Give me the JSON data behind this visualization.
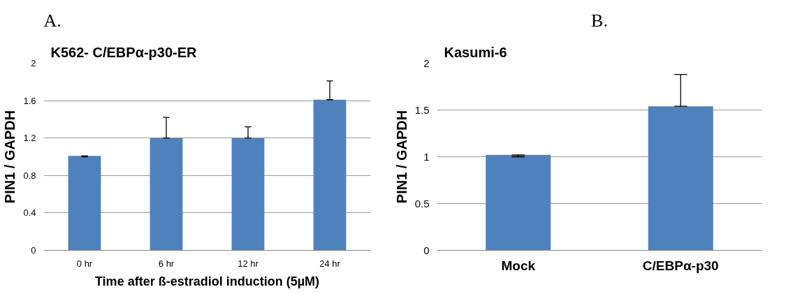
{
  "chart_data": [
    {
      "type": "bar",
      "annotations": [
        "A."
      ],
      "title": "K562- C/EBPα-p30-ER",
      "xlabel": "Time after ß-estradiol induction (5µM)",
      "ylabel": "PIN1 / GAPDH",
      "categories": [
        "0 hr",
        "6 hr",
        "12 hr",
        "24 hr"
      ],
      "values": [
        1.01,
        1.2,
        1.2,
        1.61
      ],
      "errors": [
        [
          1.0,
          1.01
        ],
        [
          1.2,
          1.42
        ],
        [
          1.2,
          1.32
        ],
        [
          1.61,
          1.81
        ]
      ],
      "color": "#4f81bd",
      "ylim": [
        0,
        2
      ],
      "yticks": [
        0,
        0.4,
        0.8,
        1.2,
        1.6,
        2
      ],
      "grid": "y"
    },
    {
      "type": "bar",
      "annotations": [
        "B."
      ],
      "title": "Kasumi-6",
      "ylabel": "PIN1 / GAPDH",
      "categories": [
        "Mock",
        "C/EBPα-p30"
      ],
      "values": [
        1.02,
        1.54
      ],
      "errors": [
        [
          1.0,
          1.02
        ],
        [
          1.54,
          1.88
        ]
      ],
      "color": "#4f81bd",
      "ylim": [
        0,
        2
      ],
      "yticks": [
        0,
        0.5,
        1,
        1.5,
        2
      ],
      "grid": "y"
    }
  ]
}
